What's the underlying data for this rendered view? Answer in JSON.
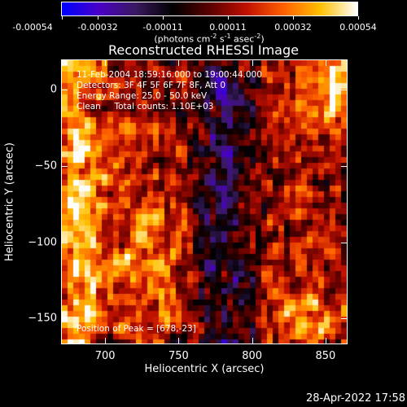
{
  "colorbar": {
    "tick_labels": [
      "-0.00054",
      "-0.00032",
      "-0.00011",
      "0.00011",
      "0.00032",
      "0.00054"
    ],
    "units_text": "(photons cm",
    "units_exp1": "-2",
    "units_mid": " s",
    "units_exp2": "-1",
    "units_mid2": " asec",
    "units_exp3": "-2",
    "units_end": ")",
    "colors": [
      "#0000ff",
      "#4a00c8",
      "#3a1a60",
      "#000000",
      "#5a0000",
      "#c01000",
      "#ff6000",
      "#ffc000",
      "#ffffff"
    ]
  },
  "title": "Reconstructed RHESSI Image",
  "info": {
    "time": "11-Feb-2004 18:59:16.000 to 19:00:44.000",
    "detectors": "Detectors: 3F 4F 5F 6F 7F 8F, Att 0",
    "energy": "Energy Range: 25.0 - 50.0 keV",
    "clean": "Clean     Total counts: 1.10E+03",
    "peak": "Position of Peak = [678,-23]"
  },
  "chart_data": {
    "type": "heatmap",
    "title": "Reconstructed RHESSI Image",
    "xlabel": "Heliocentric X (arcsec)",
    "ylabel": "Heliocentric Y (arcsec)",
    "xlim": [
      670,
      865
    ],
    "ylim": [
      -167,
      20
    ],
    "xticks": [
      "700",
      "750",
      "800",
      "850"
    ],
    "yticks": [
      "0",
      "-50",
      "-100",
      "-150"
    ],
    "zlim": [
      -0.00054,
      0.00054
    ],
    "peak": [
      678,
      -23
    ]
  },
  "timestamp": "28-Apr-2022 17:58"
}
